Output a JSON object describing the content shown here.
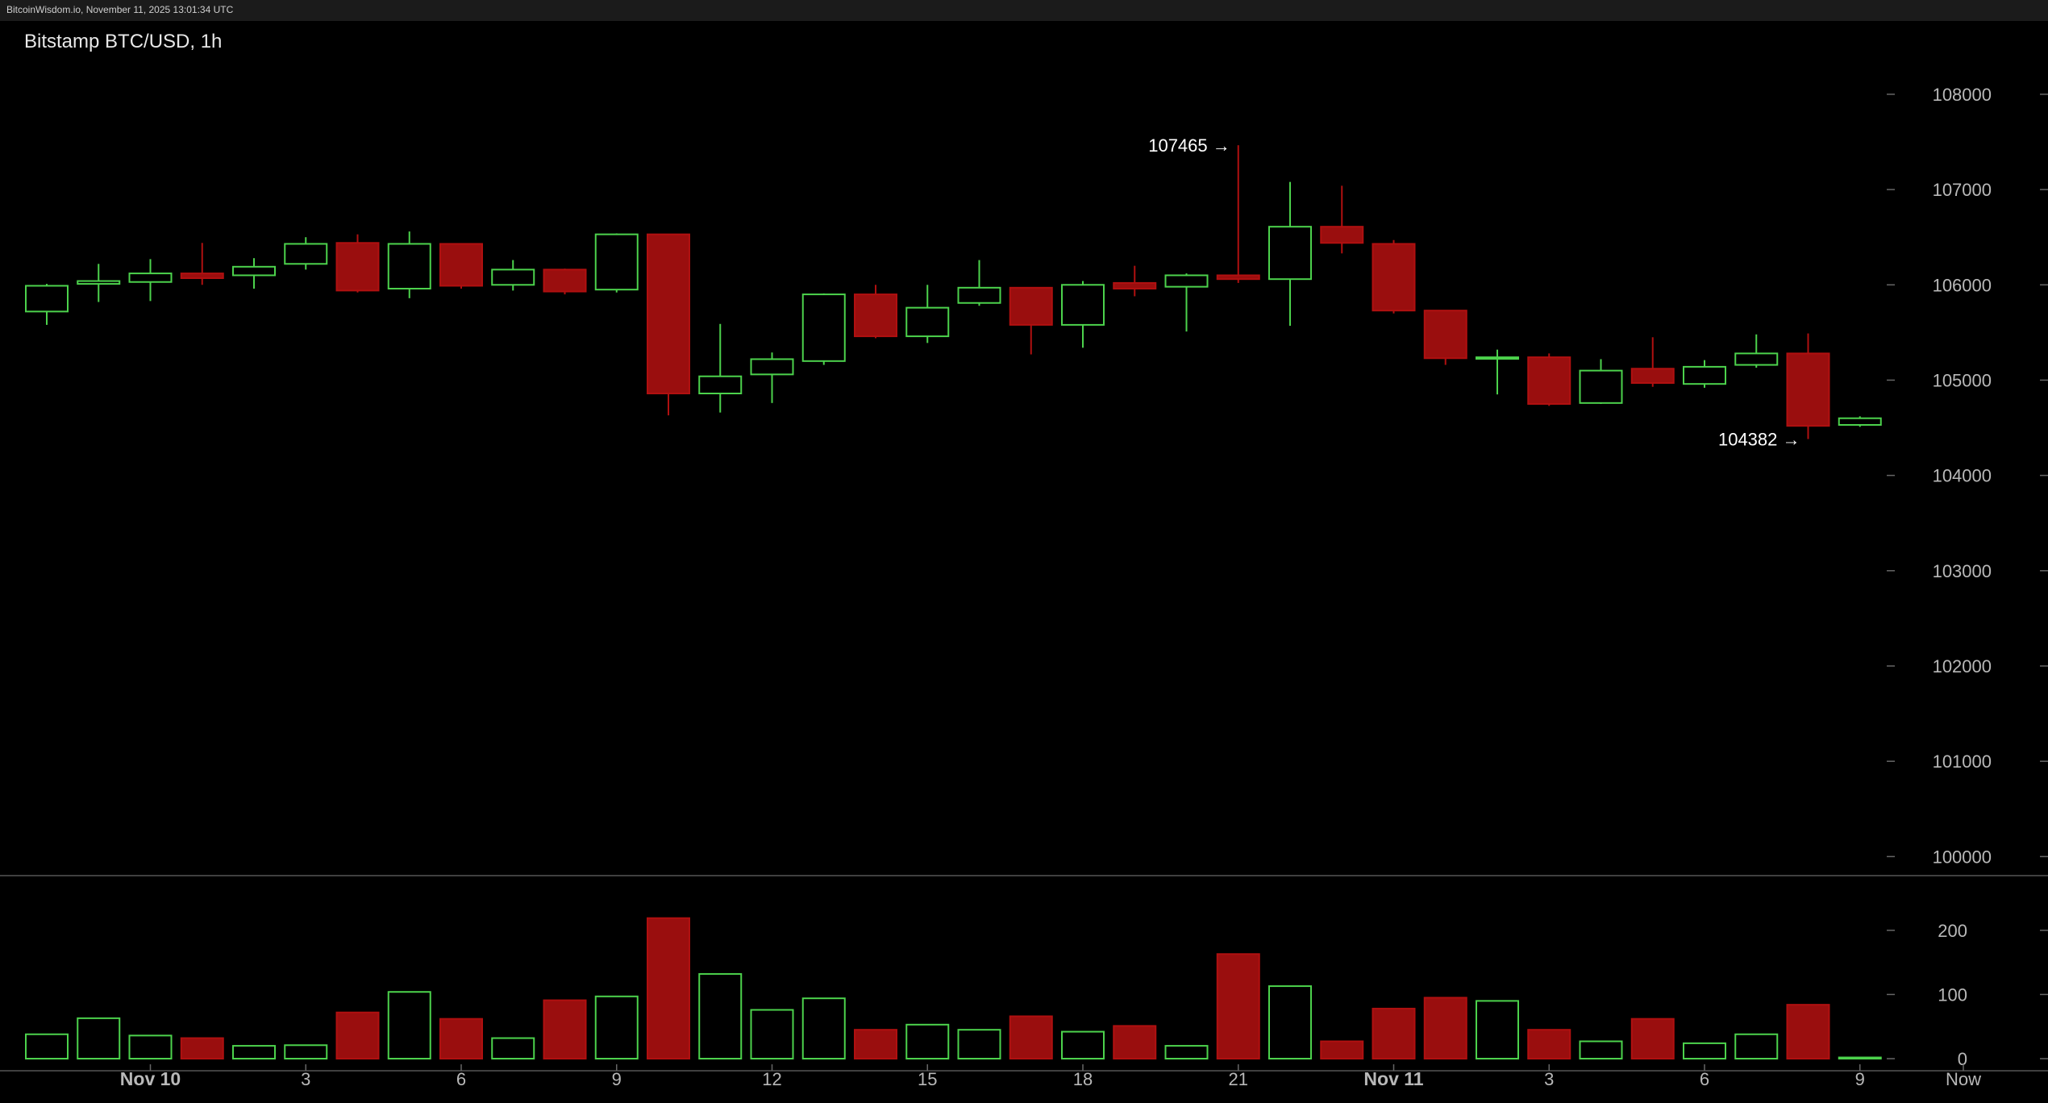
{
  "header": {
    "source_text": "BitcoinWisdom.io, November 11, 2025 13:01:34 UTC"
  },
  "chart_data": {
    "type": "candlestick",
    "title": "Bitstamp BTC/USD, 1h",
    "colors": {
      "up": "#4cd24c",
      "down": "#b01010",
      "down_fill": "#9a0e0e",
      "grid": "#333333",
      "background": "#000000",
      "separator": "#555555"
    },
    "price_axis": {
      "range": [
        99800,
        108600
      ],
      "ticks": [
        100000,
        101000,
        102000,
        103000,
        104000,
        105000,
        106000,
        107000,
        108000
      ],
      "labels": [
        "100000",
        "101000",
        "102000",
        "103000",
        "104000",
        "105000",
        "106000",
        "107000",
        "108000"
      ]
    },
    "volume_axis": {
      "range": [
        0,
        245
      ],
      "ticks": [
        0,
        100,
        200
      ],
      "labels": [
        "0",
        "100",
        "200"
      ]
    },
    "x_labels": [
      {
        "index": 3,
        "label": "Nov 10",
        "bold": true
      },
      {
        "index": 6,
        "label": "3",
        "bold": false
      },
      {
        "index": 9,
        "label": "6",
        "bold": false
      },
      {
        "index": 12,
        "label": "9",
        "bold": false
      },
      {
        "index": 15,
        "label": "12",
        "bold": false
      },
      {
        "index": 18,
        "label": "15",
        "bold": false
      },
      {
        "index": 21,
        "label": "18",
        "bold": false
      },
      {
        "index": 24,
        "label": "21",
        "bold": false
      },
      {
        "index": 27,
        "label": "Nov 11",
        "bold": true
      },
      {
        "index": 30,
        "label": "3",
        "bold": false
      },
      {
        "index": 33,
        "label": "6",
        "bold": false
      },
      {
        "index": 36,
        "label": "9",
        "bold": false
      },
      {
        "index": 37,
        "label": "Now",
        "bold": false,
        "position": "right-edge"
      }
    ],
    "candles": [
      {
        "o": 105720,
        "h": 106010,
        "l": 105580,
        "c": 105990,
        "v": 38
      },
      {
        "o": 106010,
        "h": 106220,
        "l": 105820,
        "c": 106040,
        "v": 63
      },
      {
        "o": 106030,
        "h": 106270,
        "l": 105830,
        "c": 106120,
        "v": 36
      },
      {
        "o": 106120,
        "h": 106440,
        "l": 106000,
        "c": 106070,
        "v": 32
      },
      {
        "o": 106100,
        "h": 106280,
        "l": 105960,
        "c": 106190,
        "v": 20
      },
      {
        "o": 106220,
        "h": 106500,
        "l": 106160,
        "c": 106430,
        "v": 21
      },
      {
        "o": 106440,
        "h": 106530,
        "l": 105920,
        "c": 105940,
        "v": 72
      },
      {
        "o": 105960,
        "h": 106560,
        "l": 105860,
        "c": 106430,
        "v": 104
      },
      {
        "o": 106430,
        "h": 106430,
        "l": 105960,
        "c": 105990,
        "v": 62
      },
      {
        "o": 106000,
        "h": 106260,
        "l": 105940,
        "c": 106160,
        "v": 32
      },
      {
        "o": 106160,
        "h": 106170,
        "l": 105900,
        "c": 105930,
        "v": 91
      },
      {
        "o": 105950,
        "h": 106540,
        "l": 105920,
        "c": 106530,
        "v": 97
      },
      {
        "o": 106530,
        "h": 106530,
        "l": 104630,
        "c": 104860,
        "v": 219
      },
      {
        "o": 104860,
        "h": 105590,
        "l": 104660,
        "c": 105040,
        "v": 132
      },
      {
        "o": 105060,
        "h": 105290,
        "l": 104760,
        "c": 105220,
        "v": 76
      },
      {
        "o": 105200,
        "h": 105910,
        "l": 105160,
        "c": 105900,
        "v": 94
      },
      {
        "o": 105900,
        "h": 106000,
        "l": 105440,
        "c": 105460,
        "v": 45
      },
      {
        "o": 105460,
        "h": 106000,
        "l": 105390,
        "c": 105760,
        "v": 53
      },
      {
        "o": 105810,
        "h": 106260,
        "l": 105780,
        "c": 105970,
        "v": 45
      },
      {
        "o": 105970,
        "h": 105970,
        "l": 105270,
        "c": 105580,
        "v": 66
      },
      {
        "o": 105580,
        "h": 106040,
        "l": 105340,
        "c": 106000,
        "v": 42
      },
      {
        "o": 106020,
        "h": 106200,
        "l": 105880,
        "c": 105960,
        "v": 51
      },
      {
        "o": 105980,
        "h": 106120,
        "l": 105510,
        "c": 106100,
        "v": 20
      },
      {
        "o": 106100,
        "h": 107465,
        "l": 106020,
        "c": 106060,
        "v": 163
      },
      {
        "o": 106060,
        "h": 107080,
        "l": 105570,
        "c": 106610,
        "v": 113
      },
      {
        "o": 106610,
        "h": 107040,
        "l": 106330,
        "c": 106440,
        "v": 27
      },
      {
        "o": 106430,
        "h": 106470,
        "l": 105700,
        "c": 105730,
        "v": 78
      },
      {
        "o": 105730,
        "h": 105730,
        "l": 105160,
        "c": 105230,
        "v": 95
      },
      {
        "o": 105230,
        "h": 105320,
        "l": 104850,
        "c": 105240,
        "v": 90
      },
      {
        "o": 105240,
        "h": 105280,
        "l": 104730,
        "c": 104750,
        "v": 45
      },
      {
        "o": 104760,
        "h": 105220,
        "l": 104750,
        "c": 105100,
        "v": 27
      },
      {
        "o": 105120,
        "h": 105450,
        "l": 104930,
        "c": 104970,
        "v": 62
      },
      {
        "o": 104960,
        "h": 105210,
        "l": 104920,
        "c": 105140,
        "v": 24
      },
      {
        "o": 105160,
        "h": 105480,
        "l": 105130,
        "c": 105280,
        "v": 38
      },
      {
        "o": 105280,
        "h": 105490,
        "l": 104382,
        "c": 104520,
        "v": 84
      },
      {
        "o": 104530,
        "h": 104620,
        "l": 104510,
        "c": 104600,
        "v": 1
      }
    ],
    "annotations": [
      {
        "text": "107465 →",
        "candle_index": 23,
        "value": 107465
      },
      {
        "text": "104382 →",
        "candle_index": 34,
        "value": 104382
      }
    ]
  }
}
